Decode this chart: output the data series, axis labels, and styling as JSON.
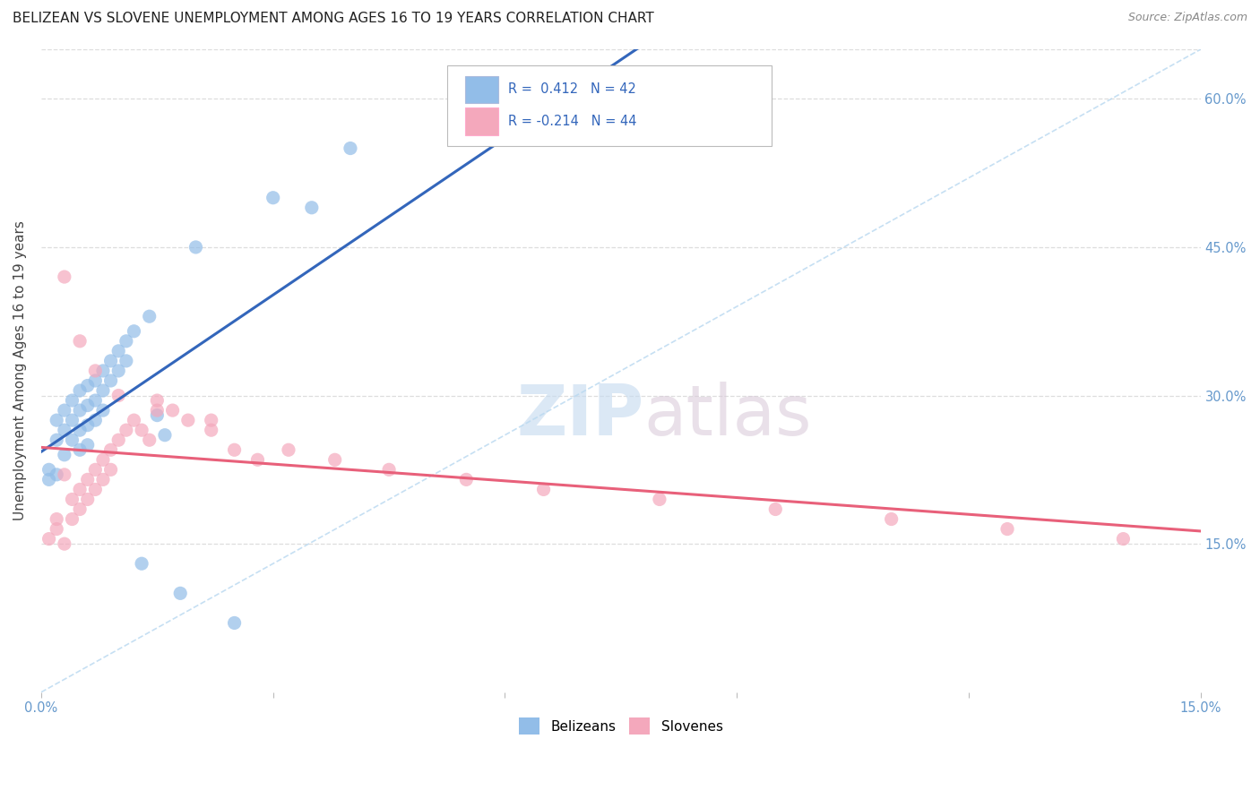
{
  "title": "BELIZEAN VS SLOVENE UNEMPLOYMENT AMONG AGES 16 TO 19 YEARS CORRELATION CHART",
  "source": "Source: ZipAtlas.com",
  "ylabel": "Unemployment Among Ages 16 to 19 years",
  "xlim": [
    0.0,
    0.15
  ],
  "ylim": [
    0.0,
    0.65
  ],
  "xtick_left_label": "0.0%",
  "xtick_right_label": "15.0%",
  "ytick_right_labels": [
    "15.0%",
    "30.0%",
    "45.0%",
    "60.0%"
  ],
  "ytick_vals": [
    0.15,
    0.3,
    0.45,
    0.6
  ],
  "belizean_color": "#92BDE8",
  "slovene_color": "#F4A8BC",
  "belizean_line_color": "#3366BB",
  "slovene_line_color": "#E8607A",
  "diagonal_color": "#B8D8F0",
  "tick_color": "#6699CC",
  "R_belizean": 0.412,
  "N_belizean": 42,
  "R_slovene": -0.214,
  "N_slovene": 44,
  "watermark_zip": "ZIP",
  "watermark_atlas": "atlas",
  "marker_size": 120,
  "belizean_x": [
    0.001,
    0.001,
    0.002,
    0.002,
    0.002,
    0.003,
    0.003,
    0.003,
    0.004,
    0.004,
    0.004,
    0.005,
    0.005,
    0.005,
    0.005,
    0.006,
    0.006,
    0.006,
    0.006,
    0.007,
    0.007,
    0.007,
    0.008,
    0.008,
    0.008,
    0.009,
    0.009,
    0.01,
    0.01,
    0.011,
    0.011,
    0.012,
    0.013,
    0.014,
    0.015,
    0.016,
    0.018,
    0.02,
    0.025,
    0.03,
    0.035,
    0.04
  ],
  "belizean_y": [
    0.225,
    0.215,
    0.275,
    0.255,
    0.22,
    0.285,
    0.265,
    0.24,
    0.295,
    0.275,
    0.255,
    0.305,
    0.285,
    0.265,
    0.245,
    0.31,
    0.29,
    0.27,
    0.25,
    0.315,
    0.295,
    0.275,
    0.325,
    0.305,
    0.285,
    0.335,
    0.315,
    0.345,
    0.325,
    0.355,
    0.335,
    0.365,
    0.13,
    0.38,
    0.28,
    0.26,
    0.1,
    0.45,
    0.07,
    0.5,
    0.49,
    0.55
  ],
  "slovene_x": [
    0.001,
    0.002,
    0.002,
    0.003,
    0.003,
    0.004,
    0.004,
    0.005,
    0.005,
    0.006,
    0.006,
    0.007,
    0.007,
    0.008,
    0.008,
    0.009,
    0.009,
    0.01,
    0.011,
    0.012,
    0.013,
    0.014,
    0.015,
    0.017,
    0.019,
    0.022,
    0.025,
    0.028,
    0.032,
    0.038,
    0.045,
    0.055,
    0.065,
    0.08,
    0.095,
    0.11,
    0.125,
    0.14,
    0.003,
    0.005,
    0.007,
    0.01,
    0.015,
    0.022
  ],
  "slovene_y": [
    0.155,
    0.175,
    0.165,
    0.22,
    0.15,
    0.195,
    0.175,
    0.205,
    0.185,
    0.215,
    0.195,
    0.225,
    0.205,
    0.235,
    0.215,
    0.245,
    0.225,
    0.255,
    0.265,
    0.275,
    0.265,
    0.255,
    0.295,
    0.285,
    0.275,
    0.265,
    0.245,
    0.235,
    0.245,
    0.235,
    0.225,
    0.215,
    0.205,
    0.195,
    0.185,
    0.175,
    0.165,
    0.155,
    0.42,
    0.355,
    0.325,
    0.3,
    0.285,
    0.275
  ]
}
